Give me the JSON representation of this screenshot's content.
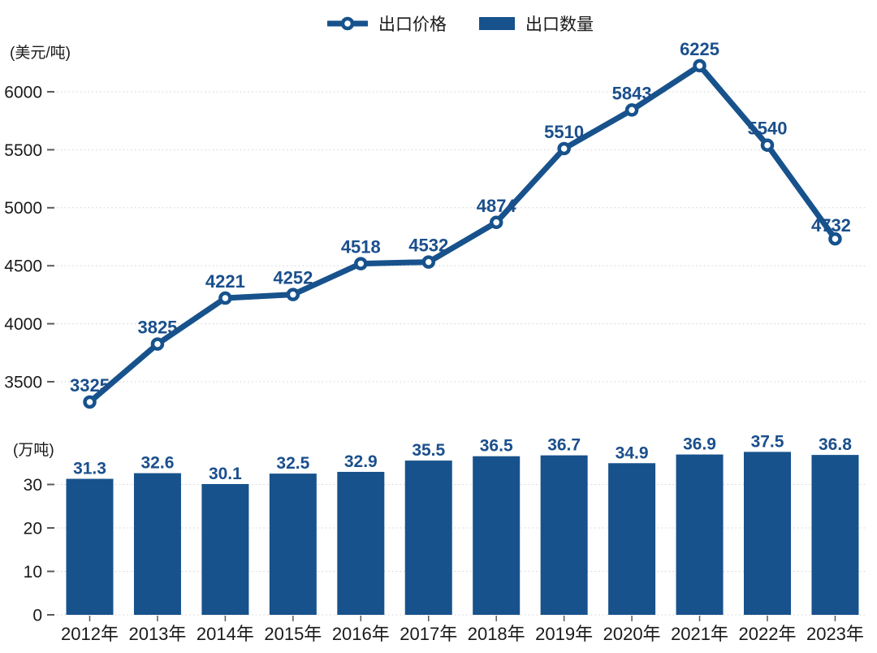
{
  "legend": {
    "price_label": "出口价格",
    "quantity_label": "出口数量"
  },
  "chart_data": [
    {
      "type": "line",
      "name": "出口价格",
      "unit_label": "(美元/吨)",
      "legend_position": "top",
      "grid": "dotted",
      "categories": [
        "2012年",
        "2013年",
        "2014年",
        "2015年",
        "2016年",
        "2017年",
        "2018年",
        "2019年",
        "2020年",
        "2021年",
        "2022年",
        "2023年"
      ],
      "values": [
        3325,
        3825,
        4221,
        4252,
        4518,
        4532,
        4874,
        5510,
        5843,
        6225,
        5540,
        4732
      ],
      "yticks": [
        3500,
        4000,
        4500,
        5000,
        5500,
        6000
      ],
      "ylim": [
        3250,
        6350
      ],
      "marker": "open-circle"
    },
    {
      "type": "bar",
      "name": "出口数量",
      "unit_label": "(万吨)",
      "grid": "dotted",
      "categories": [
        "2012年",
        "2013年",
        "2014年",
        "2015年",
        "2016年",
        "2017年",
        "2018年",
        "2019年",
        "2020年",
        "2021年",
        "2022年",
        "2023年"
      ],
      "values": [
        31.3,
        32.6,
        30.1,
        32.5,
        32.9,
        35.5,
        36.5,
        36.7,
        34.9,
        36.9,
        37.5,
        36.8
      ],
      "yticks": [
        0,
        10,
        20,
        30
      ],
      "ylim": [
        0,
        40
      ]
    }
  ],
  "colors": {
    "series": "#17528C",
    "data_label": "#1B4F8C",
    "grid_line": "#D4D4D4",
    "axis_text": "#1A1A1A",
    "tick_mark": "#595959",
    "marker_fill": "#FFFFFF",
    "background": "#FFFFFF"
  }
}
